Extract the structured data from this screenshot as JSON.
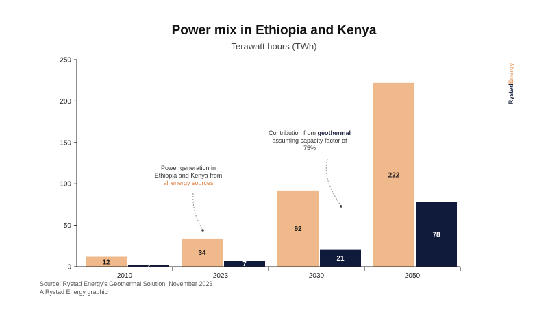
{
  "chart_data": {
    "type": "bar",
    "title": "Power mix in Ethiopia and Kenya",
    "subtitle": "Terawatt hours (TWh)",
    "categories": [
      "2010",
      "2023",
      "2030",
      "2050"
    ],
    "series": [
      {
        "color": "#f0b98c",
        "values": [
          12,
          34,
          92,
          222
        ]
      },
      {
        "color": "#101a3a",
        "values": [
          2,
          7,
          21,
          78
        ]
      }
    ],
    "ylim": [
      0,
      250
    ],
    "yticks": [
      0,
      50,
      100,
      150,
      200,
      250
    ],
    "xlabel": "",
    "ylabel": "",
    "grid": false
  },
  "annotations": {
    "all_sources": {
      "line1": "Power generation in",
      "line2": "Ethiopia and Kenya from",
      "highlight": "all energy sources"
    },
    "geothermal": {
      "prefix": "Contribution from ",
      "highlight": "geothermal",
      "line2": "assuming capacity factor of",
      "line3": "75%"
    }
  },
  "brand": {
    "part1": "Rystad",
    "part2": "Energy"
  },
  "footer": {
    "source": "Source: Rystad Energy's Geothermal Solution; November 2023",
    "credit": "A Rystad Energy graphic"
  }
}
